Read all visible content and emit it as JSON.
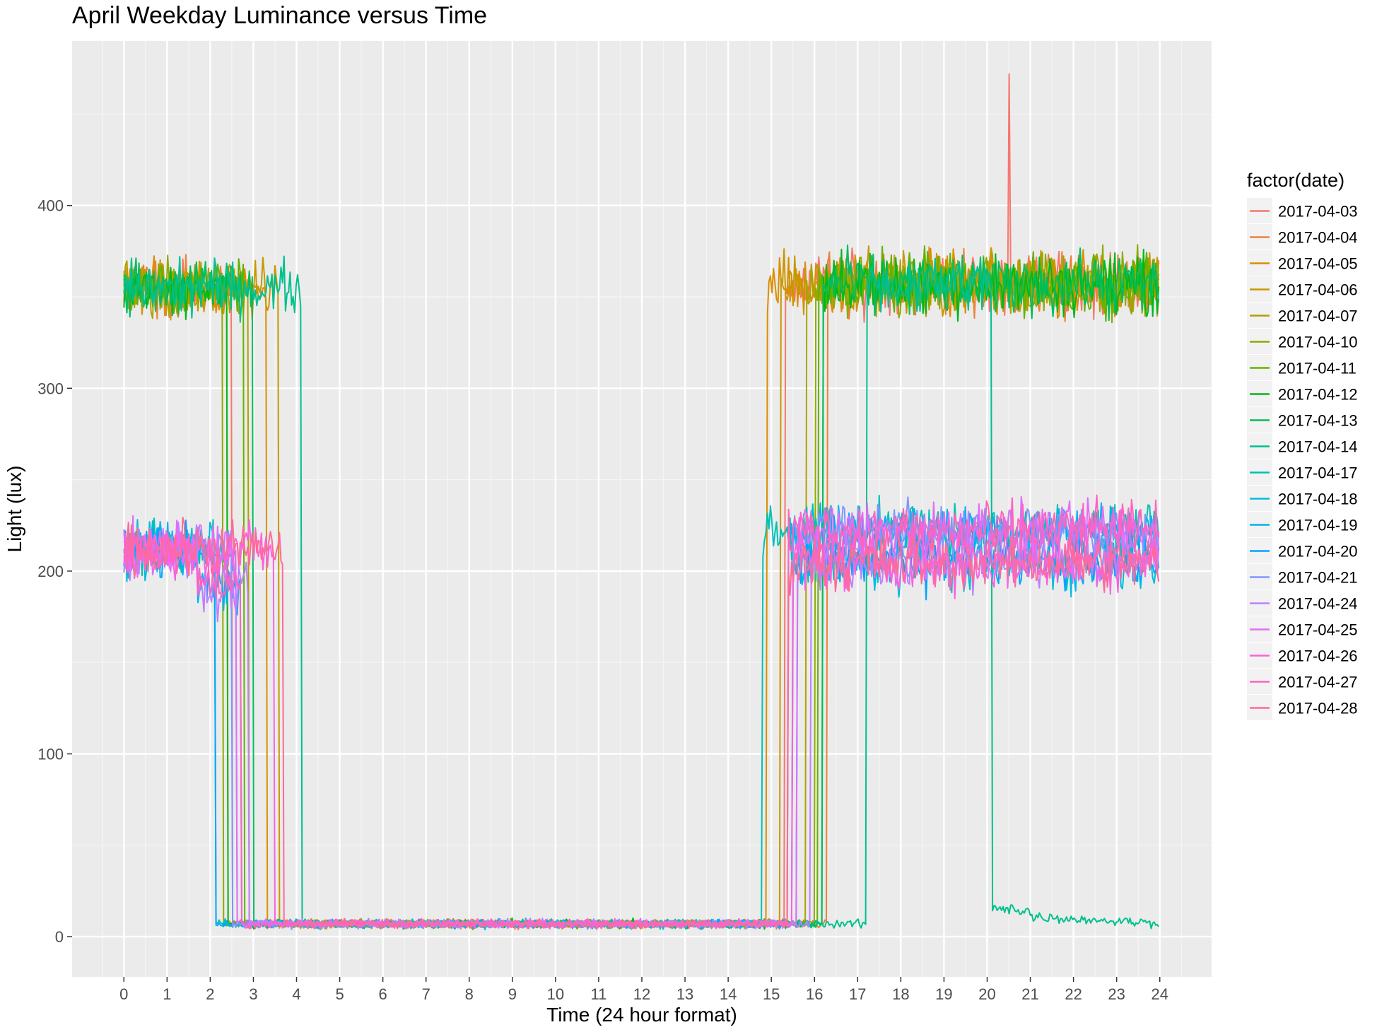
{
  "chart_data": {
    "type": "line",
    "title": "April Weekday Luminance versus Time",
    "xlabel": "Time (24 hour format)",
    "ylabel": "Light (lux)",
    "xlim": [
      -1.2,
      25.2
    ],
    "ylim": [
      -22,
      490
    ],
    "x_ticks": [
      "0",
      "1",
      "2",
      "3",
      "4",
      "5",
      "6",
      "7",
      "8",
      "9",
      "10",
      "11",
      "12",
      "13",
      "14",
      "15",
      "16",
      "17",
      "18",
      "19",
      "20",
      "21",
      "22",
      "23",
      "24"
    ],
    "y_ticks": [
      "0",
      "100",
      "200",
      "300",
      "400"
    ],
    "grid": true,
    "legend": {
      "title": "factor(date)",
      "position": "right"
    },
    "series": [
      {
        "name": "2017-04-03",
        "color": "#F8766D",
        "level": "high",
        "day_end": 2.5,
        "day_start": 15.3,
        "spike": [
          20.5,
          472
        ]
      },
      {
        "name": "2017-04-04",
        "color": "#EC8239",
        "level": "high",
        "day_end": 2.4,
        "day_start": 16.3
      },
      {
        "name": "2017-04-05",
        "color": "#DB8E00",
        "level": "high",
        "day_end": 3.3,
        "day_start": 14.9
      },
      {
        "name": "2017-04-06",
        "color": "#C79800",
        "level": "high",
        "day_end": 3.6,
        "day_start": 15.2
      },
      {
        "name": "2017-04-07",
        "color": "#AEA200",
        "level": "high",
        "day_end": 2.9,
        "day_start": 15.8
      },
      {
        "name": "2017-04-10",
        "color": "#8FAA00",
        "level": "high",
        "day_end": 2.3,
        "day_start": 16.0
      },
      {
        "name": "2017-04-11",
        "color": "#64B200",
        "level": "high",
        "day_end": 2.8,
        "day_start": 16.1
      },
      {
        "name": "2017-04-12",
        "color": "#00B81B",
        "level": "high",
        "day_end": 2.4,
        "day_start": 16.2
      },
      {
        "name": "2017-04-13",
        "color": "#00BD5C",
        "level": "high",
        "day_end": 3.0,
        "day_start": 16.2
      },
      {
        "name": "2017-04-14",
        "color": "#00C08E",
        "level": "high",
        "day_end": 4.1,
        "day_start": 17.2,
        "evening_drop": 20.1
      },
      {
        "name": "2017-04-17",
        "color": "#00C1B7",
        "level": "low",
        "day_end": 2.1,
        "day_start": 14.8
      },
      {
        "name": "2017-04-18",
        "color": "#00BDDC",
        "level": "low",
        "day_end": 2.6,
        "day_start": 15.5
      },
      {
        "name": "2017-04-19",
        "color": "#00B2F3",
        "level": "low",
        "day_end": 2.7,
        "day_start": 15.4
      },
      {
        "name": "2017-04-20",
        "color": "#00A6FF",
        "level": "low",
        "day_end": 2.1,
        "day_start": 15.6
      },
      {
        "name": "2017-04-21",
        "color": "#7F96FF",
        "level": "low",
        "day_end": 2.5,
        "day_start": 15.5
      },
      {
        "name": "2017-04-24",
        "color": "#BC81FF",
        "level": "low",
        "day_end": 2.9,
        "day_start": 15.9
      },
      {
        "name": "2017-04-25",
        "color": "#E26EF7",
        "level": "low",
        "day_end": 2.6,
        "day_start": 15.6
      },
      {
        "name": "2017-04-26",
        "color": "#F863DF",
        "level": "low",
        "day_end": 3.5,
        "day_start": 15.5
      },
      {
        "name": "2017-04-27",
        "color": "#FF62BF",
        "level": "low",
        "day_end": 2.7,
        "day_start": 15.4
      },
      {
        "name": "2017-04-28",
        "color": "#FF6A9A",
        "level": "low",
        "day_end": 3.7,
        "day_start": 15.4
      }
    ]
  }
}
